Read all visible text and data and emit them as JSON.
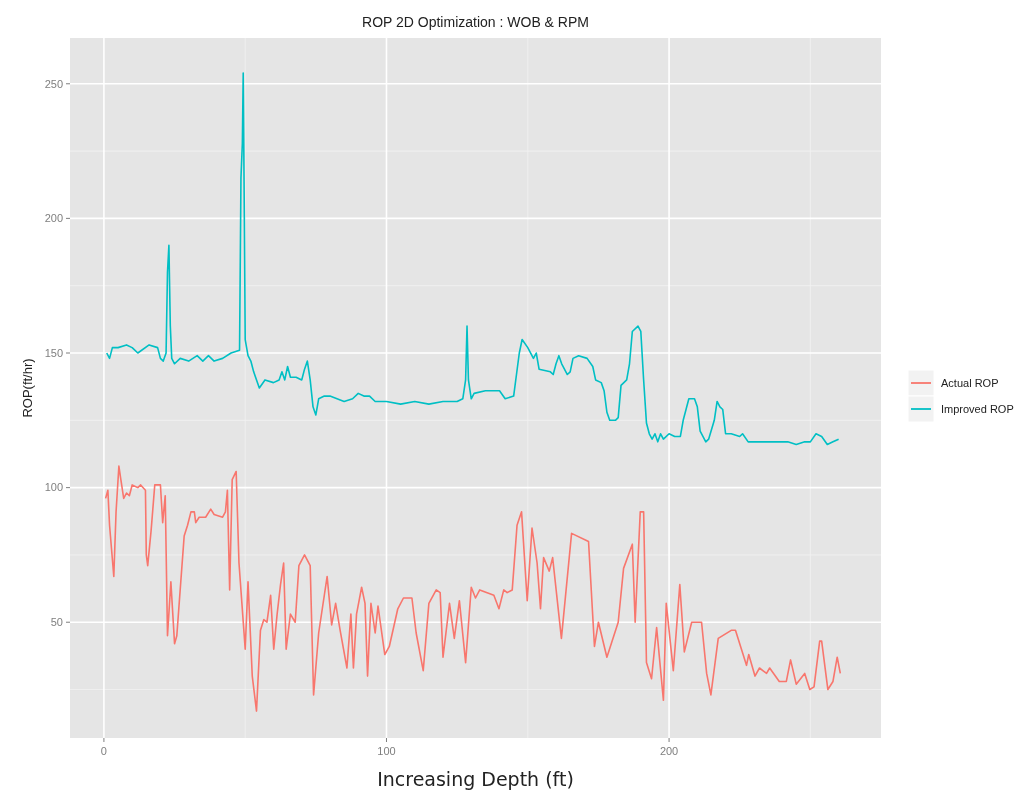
{
  "chart_data": {
    "type": "line",
    "title": "ROP 2D Optimization : WOB & RPM",
    "xlabel": "Increasing Depth (ft)",
    "ylabel": "ROP(ft/hr)",
    "xlim": [
      -12,
      275
    ],
    "xticks": [
      0,
      100,
      200
    ],
    "ylim": [
      7,
      267
    ],
    "yticks": [
      50,
      100,
      150,
      200,
      250
    ],
    "grid": true,
    "legend": "right",
    "line_style": "solid",
    "marker": "none",
    "series": [
      {
        "name": "Actual ROP",
        "color": "#f8766d",
        "x": [
          0.6,
          1.4,
          2,
          3.5,
          4.3,
          5.3,
          6,
          7,
          8,
          9,
          10,
          12,
          13,
          14.7,
          15,
          15.5,
          16.7,
          18,
          20,
          20.8,
          21.7,
          22.5,
          23.7,
          25,
          25.8,
          27.2,
          28.4,
          29.6,
          30.8,
          32,
          32.5,
          33.7,
          36,
          37.8,
          39,
          42,
          43,
          43.7,
          44.5,
          45.4,
          46.8,
          47.8,
          50,
          51,
          52.5,
          54,
          55.4,
          56.6,
          57.7,
          59,
          60.1,
          61.3,
          62.5,
          63.6,
          64.5,
          66,
          67.7,
          69,
          71,
          73,
          74.2,
          76,
          79,
          80.6,
          82,
          83.6,
          86,
          87.4,
          88.3,
          89.4,
          91.2,
          92.4,
          93.3,
          94.5,
          96,
          97,
          99.4,
          101,
          104,
          106,
          109,
          110.5,
          113,
          115,
          117.6,
          119,
          120,
          122.3,
          124,
          125.8,
          128,
          130,
          131.5,
          133,
          138,
          139.8,
          141.5,
          142.7,
          144.5,
          146.2,
          147.8,
          149.8,
          151.5,
          153.3,
          154.5,
          155.6,
          157.6,
          158.8,
          161.9,
          165.5,
          171.5,
          173.6,
          175,
          178,
          182,
          183.9,
          187,
          188,
          189.8,
          191,
          192,
          193.8,
          195.6,
          198,
          199,
          201.5,
          203.8,
          205.4,
          208,
          211.5,
          213.3,
          214.8,
          217.4,
          222,
          223.5,
          227.4,
          228.2,
          230.4,
          232,
          234.5,
          235.6,
          239,
          241.5,
          243,
          245,
          248,
          249.8,
          251.3,
          253.3,
          254,
          256.2,
          258,
          259.5,
          260.6
        ],
        "values": [
          96,
          99,
          86,
          67,
          91,
          108,
          103,
          96,
          98,
          97,
          101,
          100,
          101,
          99,
          75,
          71,
          84,
          101,
          101,
          87,
          97,
          45,
          65,
          42,
          45,
          65,
          82,
          86,
          91,
          91,
          87,
          89,
          89,
          92,
          90,
          89,
          91,
          99,
          62,
          103,
          106,
          72,
          40,
          65,
          30,
          17,
          47,
          51,
          50,
          60,
          40,
          53,
          64,
          72,
          40,
          53,
          50,
          71,
          75,
          71,
          23,
          46,
          67,
          49,
          57,
          47,
          33,
          53,
          33,
          53,
          63,
          57,
          30,
          57,
          46,
          56,
          38,
          41,
          55,
          59,
          59,
          46,
          32,
          57,
          62,
          61,
          37,
          57,
          44,
          58,
          35,
          63,
          59,
          62,
          60,
          55,
          62,
          61,
          62,
          86,
          91,
          58,
          85,
          72,
          55,
          74,
          69,
          74,
          44,
          83,
          80,
          41,
          50,
          37,
          50,
          70,
          79,
          50,
          91,
          91,
          35,
          29,
          48,
          21,
          57,
          32,
          64,
          39,
          50,
          50,
          31,
          23,
          44,
          47,
          47,
          34,
          38,
          30,
          33,
          31,
          33,
          28,
          28,
          36,
          27,
          31,
          25,
          26,
          43,
          43,
          25,
          28,
          37,
          31
        ]
      },
      {
        "name": "Improved ROP",
        "color": "#00bfc4",
        "x": [
          1,
          2,
          3,
          5,
          8,
          10,
          12,
          16,
          19,
          20,
          21,
          22,
          22.5,
          23,
          23.5,
          24,
          25,
          27,
          30,
          33,
          35,
          37,
          39,
          42,
          45,
          48,
          48.5,
          49,
          49.3,
          49.7,
          50,
          51,
          52,
          53,
          55,
          57,
          60,
          62,
          63,
          64,
          65,
          66,
          68,
          70,
          71,
          72,
          73,
          74,
          75,
          76,
          78,
          80,
          85,
          88,
          90,
          92,
          94,
          96,
          100,
          105,
          110,
          115,
          120,
          125,
          127,
          128,
          128.5,
          129,
          130,
          131,
          135,
          140,
          142,
          145,
          147,
          148,
          150,
          152,
          153,
          154,
          158,
          159,
          160,
          161,
          162,
          164,
          165,
          166,
          168,
          171,
          173,
          174,
          176,
          177,
          178,
          179,
          181,
          182,
          183,
          185,
          186,
          187,
          189,
          190,
          191,
          192,
          193,
          194,
          195,
          196,
          197,
          198,
          200,
          202,
          204,
          205,
          207,
          209,
          210,
          211,
          213,
          214,
          216,
          217,
          218,
          219,
          220,
          222,
          225,
          226,
          228,
          235,
          242,
          245,
          248,
          250,
          252,
          254,
          256,
          258,
          260
        ],
        "values": [
          150,
          148,
          152,
          152,
          153,
          152,
          150,
          153,
          152,
          148,
          147,
          150,
          180,
          190,
          160,
          148,
          146,
          148,
          147,
          149,
          147,
          149,
          147,
          148,
          150,
          151,
          215,
          228,
          254,
          200,
          155,
          149,
          147,
          143,
          137,
          140,
          139,
          140,
          143,
          140,
          145,
          141,
          141,
          140,
          144,
          147,
          140,
          130,
          127,
          133,
          134,
          134,
          132,
          133,
          135,
          134,
          134,
          132,
          132,
          131,
          132,
          131,
          132,
          132,
          133,
          140,
          160,
          140,
          133,
          135,
          136,
          136,
          133,
          134,
          150,
          155,
          152,
          148,
          150,
          144,
          143,
          142,
          146,
          149,
          146,
          142,
          143,
          148,
          149,
          148,
          145,
          140,
          139,
          136,
          128,
          125,
          125,
          126,
          138,
          140,
          146,
          158,
          160,
          158,
          140,
          124,
          120,
          118,
          120,
          117,
          120,
          118,
          120,
          119,
          119,
          125,
          133,
          133,
          130,
          121,
          117,
          118,
          125,
          132,
          130,
          129,
          120,
          120,
          119,
          120,
          117,
          117,
          117,
          116,
          117,
          117,
          120,
          119,
          116,
          117,
          118
        ]
      }
    ]
  }
}
